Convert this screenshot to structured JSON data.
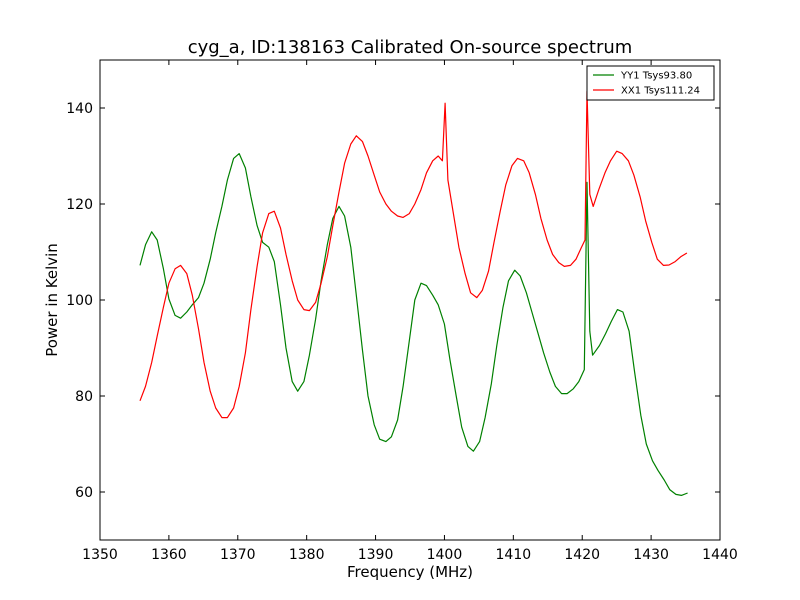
{
  "chart_data": {
    "type": "line",
    "title": "cyg_a, ID:138163 Calibrated On-source spectrum",
    "xlabel": "Frequency (MHz)",
    "ylabel": "Power in Kelvin",
    "xlim": [
      1350,
      1440
    ],
    "ylim": [
      50,
      150
    ],
    "xticks": [
      1350,
      1360,
      1370,
      1380,
      1390,
      1400,
      1410,
      1420,
      1430,
      1440
    ],
    "yticks": [
      60,
      80,
      100,
      120,
      140
    ],
    "grid": false,
    "legend_position": "top-right",
    "series": [
      {
        "name": "YY1 Tsys93.80",
        "color": "#008000",
        "points": [
          [
            1355.8,
            107.2
          ],
          [
            1356.6,
            111.5
          ],
          [
            1357.5,
            114.2
          ],
          [
            1358.3,
            112.5
          ],
          [
            1359.2,
            106.5
          ],
          [
            1360.0,
            100.2
          ],
          [
            1360.9,
            96.8
          ],
          [
            1361.7,
            96.2
          ],
          [
            1362.6,
            97.5
          ],
          [
            1363.4,
            99.0
          ],
          [
            1364.3,
            100.5
          ],
          [
            1365.1,
            103.5
          ],
          [
            1366.0,
            108.5
          ],
          [
            1366.8,
            114.0
          ],
          [
            1367.7,
            119.5
          ],
          [
            1368.5,
            125.0
          ],
          [
            1369.4,
            129.5
          ],
          [
            1370.2,
            130.5
          ],
          [
            1371.1,
            127.5
          ],
          [
            1371.9,
            121.5
          ],
          [
            1372.8,
            115.5
          ],
          [
            1373.6,
            112.0
          ],
          [
            1374.5,
            111.0
          ],
          [
            1375.3,
            108.0
          ],
          [
            1376.2,
            99.0
          ],
          [
            1377.0,
            90.0
          ],
          [
            1377.9,
            83.0
          ],
          [
            1378.7,
            81.0
          ],
          [
            1379.6,
            83.0
          ],
          [
            1380.4,
            88.5
          ],
          [
            1381.3,
            96.0
          ],
          [
            1382.1,
            104.0
          ],
          [
            1383.0,
            111.5
          ],
          [
            1383.8,
            117.0
          ],
          [
            1384.7,
            119.5
          ],
          [
            1385.5,
            117.5
          ],
          [
            1386.4,
            111.0
          ],
          [
            1387.2,
            101.0
          ],
          [
            1388.1,
            89.5
          ],
          [
            1388.9,
            80.0
          ],
          [
            1389.8,
            74.0
          ],
          [
            1390.6,
            71.0
          ],
          [
            1391.5,
            70.5
          ],
          [
            1392.3,
            71.5
          ],
          [
            1393.2,
            75.0
          ],
          [
            1394.0,
            82.0
          ],
          [
            1394.9,
            91.5
          ],
          [
            1395.7,
            100.0
          ],
          [
            1396.6,
            103.5
          ],
          [
            1397.4,
            103.0
          ],
          [
            1398.3,
            101.0
          ],
          [
            1399.1,
            99.0
          ],
          [
            1400.0,
            95.0
          ],
          [
            1400.8,
            87.5
          ],
          [
            1401.7,
            80.0
          ],
          [
            1402.5,
            73.5
          ],
          [
            1403.4,
            69.5
          ],
          [
            1404.2,
            68.5
          ],
          [
            1405.1,
            70.5
          ],
          [
            1405.9,
            75.5
          ],
          [
            1406.8,
            82.5
          ],
          [
            1407.6,
            90.5
          ],
          [
            1408.5,
            98.5
          ],
          [
            1409.3,
            104.0
          ],
          [
            1410.2,
            106.2
          ],
          [
            1411.0,
            105.0
          ],
          [
            1411.9,
            101.5
          ],
          [
            1412.7,
            97.5
          ],
          [
            1413.6,
            93.0
          ],
          [
            1414.4,
            89.0
          ],
          [
            1415.3,
            85.0
          ],
          [
            1416.1,
            82.0
          ],
          [
            1417.0,
            80.5
          ],
          [
            1417.8,
            80.5
          ],
          [
            1418.7,
            81.5
          ],
          [
            1419.5,
            83.0
          ],
          [
            1420.3,
            85.5
          ],
          [
            1420.7,
            124.5
          ],
          [
            1421.1,
            93.5
          ],
          [
            1421.5,
            88.5
          ],
          [
            1422.5,
            90.5
          ],
          [
            1423.4,
            93.0
          ],
          [
            1424.2,
            95.5
          ],
          [
            1425.1,
            98.0
          ],
          [
            1425.9,
            97.5
          ],
          [
            1426.8,
            93.5
          ],
          [
            1427.6,
            85.0
          ],
          [
            1428.5,
            76.0
          ],
          [
            1429.3,
            70.0
          ],
          [
            1430.2,
            66.5
          ],
          [
            1431.0,
            64.5
          ],
          [
            1431.9,
            62.5
          ],
          [
            1432.7,
            60.5
          ],
          [
            1433.6,
            59.5
          ],
          [
            1434.4,
            59.3
          ],
          [
            1435.3,
            59.8
          ]
        ]
      },
      {
        "name": "XX1 Tsys111.24",
        "color": "#ff0000",
        "points": [
          [
            1355.8,
            79.0
          ],
          [
            1356.6,
            82.0
          ],
          [
            1357.5,
            87.0
          ],
          [
            1358.3,
            92.5
          ],
          [
            1359.2,
            98.5
          ],
          [
            1360.0,
            103.5
          ],
          [
            1360.9,
            106.5
          ],
          [
            1361.7,
            107.2
          ],
          [
            1362.6,
            105.5
          ],
          [
            1363.4,
            101.0
          ],
          [
            1364.3,
            94.0
          ],
          [
            1365.1,
            87.0
          ],
          [
            1366.0,
            81.0
          ],
          [
            1366.8,
            77.5
          ],
          [
            1367.7,
            75.5
          ],
          [
            1368.5,
            75.5
          ],
          [
            1369.4,
            77.5
          ],
          [
            1370.2,
            82.0
          ],
          [
            1371.1,
            89.0
          ],
          [
            1371.9,
            98.0
          ],
          [
            1372.8,
            107.0
          ],
          [
            1373.6,
            114.0
          ],
          [
            1374.5,
            118.0
          ],
          [
            1375.3,
            118.5
          ],
          [
            1376.2,
            115.0
          ],
          [
            1377.0,
            109.5
          ],
          [
            1377.9,
            104.0
          ],
          [
            1378.7,
            100.0
          ],
          [
            1379.6,
            98.0
          ],
          [
            1380.4,
            97.8
          ],
          [
            1381.3,
            99.5
          ],
          [
            1382.1,
            103.5
          ],
          [
            1383.0,
            109.0
          ],
          [
            1383.8,
            115.5
          ],
          [
            1384.7,
            122.5
          ],
          [
            1385.5,
            128.5
          ],
          [
            1386.4,
            132.5
          ],
          [
            1387.2,
            134.2
          ],
          [
            1388.1,
            133.0
          ],
          [
            1388.9,
            130.0
          ],
          [
            1389.8,
            126.0
          ],
          [
            1390.6,
            122.5
          ],
          [
            1391.5,
            120.0
          ],
          [
            1392.3,
            118.5
          ],
          [
            1393.2,
            117.5
          ],
          [
            1394.0,
            117.2
          ],
          [
            1394.9,
            118.0
          ],
          [
            1395.7,
            120.0
          ],
          [
            1396.6,
            123.0
          ],
          [
            1397.4,
            126.5
          ],
          [
            1398.3,
            129.0
          ],
          [
            1399.1,
            130.0
          ],
          [
            1399.7,
            129.0
          ],
          [
            1400.1,
            141.0
          ],
          [
            1400.5,
            125.0
          ],
          [
            1401.3,
            118.0
          ],
          [
            1402.1,
            111.0
          ],
          [
            1403.0,
            105.5
          ],
          [
            1403.8,
            101.5
          ],
          [
            1404.7,
            100.5
          ],
          [
            1405.5,
            102.0
          ],
          [
            1406.4,
            106.0
          ],
          [
            1407.2,
            112.0
          ],
          [
            1408.1,
            118.5
          ],
          [
            1408.9,
            124.0
          ],
          [
            1409.8,
            128.0
          ],
          [
            1410.6,
            129.5
          ],
          [
            1411.5,
            129.0
          ],
          [
            1412.3,
            126.5
          ],
          [
            1413.2,
            122.0
          ],
          [
            1414.0,
            117.0
          ],
          [
            1414.9,
            112.5
          ],
          [
            1415.7,
            109.5
          ],
          [
            1416.6,
            107.8
          ],
          [
            1417.4,
            107.0
          ],
          [
            1418.3,
            107.2
          ],
          [
            1419.1,
            108.5
          ],
          [
            1419.9,
            111.0
          ],
          [
            1420.4,
            112.5
          ],
          [
            1420.7,
            143.5
          ],
          [
            1421.1,
            122.0
          ],
          [
            1421.6,
            119.5
          ],
          [
            1422.4,
            123.0
          ],
          [
            1423.3,
            126.5
          ],
          [
            1424.1,
            129.0
          ],
          [
            1425.0,
            131.0
          ],
          [
            1425.8,
            130.5
          ],
          [
            1426.7,
            129.0
          ],
          [
            1427.5,
            126.0
          ],
          [
            1428.4,
            121.5
          ],
          [
            1429.2,
            116.5
          ],
          [
            1430.1,
            112.0
          ],
          [
            1430.9,
            108.5
          ],
          [
            1431.8,
            107.2
          ],
          [
            1432.6,
            107.3
          ],
          [
            1433.5,
            108.0
          ],
          [
            1434.3,
            109.0
          ],
          [
            1435.2,
            109.8
          ]
        ]
      }
    ]
  }
}
